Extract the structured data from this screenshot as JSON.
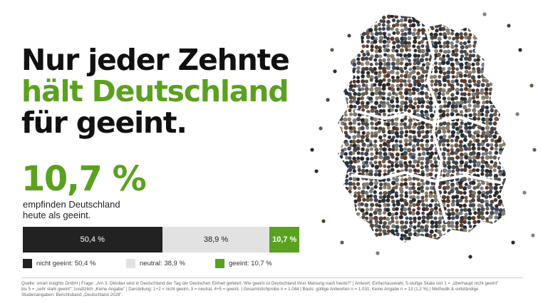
{
  "headline": {
    "line1": "Nur jeder Zehnte",
    "line2": "hält Deutschland",
    "line3": "für geeint."
  },
  "highlight": {
    "value": "10,7 %",
    "caption_line1": "empfinden Deutschland",
    "caption_line2": "heute als geeint."
  },
  "chart_data": {
    "type": "bar",
    "orientation": "horizontal-stacked",
    "categories": [
      "nicht geeint",
      "neutral",
      "geeint"
    ],
    "values": [
      50.4,
      38.9,
      10.7
    ],
    "labels": [
      "50,4 %",
      "38,9 %",
      "10,7 %"
    ],
    "legend": [
      "nicht geeint: 50,4 %",
      "neutral: 38,9 %",
      "geeint: 10,7 %"
    ],
    "colors": [
      "#222222",
      "#e2e2e2",
      "#5aa11f"
    ],
    "legend_placement": "bottom",
    "title": "",
    "xlabel": "",
    "ylabel": ""
  },
  "source": {
    "line1": "Quelle: smart insights GmbH | Frage: „Am 3. Oktober wird in Deutschland der Tag der Deutschen Einheit gefeiert. Wie geeint ist Deutschland Ihrer Meinung nach heute?\" | Antwort: Einfachauswahl, 5-stufige Skala von 1 = „überhaupt nicht geeint\"",
    "line2": "bis 5 = „sehr stark geeint\"; zusätzlich „Keine Angabe\" | Darstellung: 1+2 = nicht geeint, 3 = neutral, 4+5 = geeint. | Gesamtstichprobe n = 1.044 | Basis: gültige Antworten n = 1.031; Keine Angabe n = 13 (1,2 %) | Methodik & vollständige",
    "line3": "Studienangaben: Berichtsband „Deutschland 2028\"."
  },
  "colors": {
    "accent_green": "#5aa11f",
    "dark": "#222222",
    "neutral": "#e2e2e2"
  },
  "image": {
    "description_icon": "crowd-map-germany-icon"
  }
}
